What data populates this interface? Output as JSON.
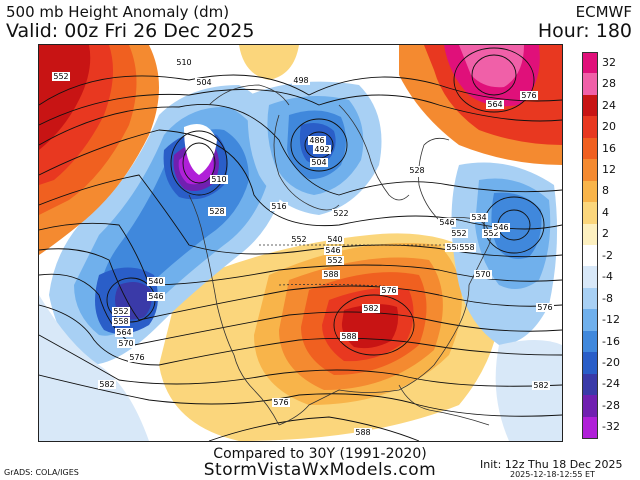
{
  "header": {
    "title": "500 mb Height Anomaly (dm)",
    "valid": "Valid: 00z Fri 26 Dec 2025",
    "model": "ECMWF",
    "hour": "Hour: 180"
  },
  "colorbar": {
    "levels": [
      {
        "label": "32",
        "color": "#e0107a"
      },
      {
        "label": "28",
        "color": "#f060a8"
      },
      {
        "label": "24",
        "color": "#c81414"
      },
      {
        "label": "20",
        "color": "#e83820"
      },
      {
        "label": "16",
        "color": "#f06020"
      },
      {
        "label": "12",
        "color": "#f48a30"
      },
      {
        "label": "8",
        "color": "#f8b44a"
      },
      {
        "label": "4",
        "color": "#fbd67c"
      },
      {
        "label": "2",
        "color": "#fdf0c0"
      },
      {
        "label": "-2",
        "color": "#ffffff"
      },
      {
        "label": "-4",
        "color": "#d8e8f8"
      },
      {
        "label": "-8",
        "color": "#a8d0f4"
      },
      {
        "label": "-12",
        "color": "#70b0ec"
      },
      {
        "label": "-16",
        "color": "#4088dc"
      },
      {
        "label": "-20",
        "color": "#2a5ec8"
      },
      {
        "label": "-24",
        "color": "#3a3aa8"
      },
      {
        "label": "-28",
        "color": "#7020b0"
      },
      {
        "label": "-32",
        "color": "#b020d8"
      }
    ],
    "end_label": "-32"
  },
  "map": {
    "contour_labels": [
      "552",
      "504",
      "510",
      "498",
      "486",
      "492",
      "504",
      "528",
      "510",
      "516",
      "522",
      "528",
      "540",
      "546",
      "552",
      "558",
      "564",
      "570",
      "576",
      "582",
      "588",
      "540",
      "546",
      "552",
      "558",
      "564",
      "570",
      "576",
      "582",
      "588",
      "552",
      "576",
      "498",
      "528",
      "534",
      "540",
      "546",
      "552",
      "558",
      "564",
      "570",
      "576",
      "582",
      "588",
      "546",
      "564",
      "576",
      "582",
      "552",
      "564",
      "576"
    ],
    "contour_label_display": [
      {
        "t": "552"
      },
      {
        "t": "504"
      },
      {
        "t": "510"
      },
      {
        "t": "498"
      },
      {
        "t": "486"
      },
      {
        "t": "492"
      },
      {
        "t": "504"
      },
      {
        "t": "498"
      },
      {
        "t": "510"
      },
      {
        "t": "516"
      },
      {
        "t": "522"
      },
      {
        "t": "528"
      },
      {
        "t": "528"
      },
      {
        "t": "540"
      },
      {
        "t": "546"
      },
      {
        "t": "552"
      },
      {
        "t": "546"
      },
      {
        "t": "552"
      },
      {
        "t": "558"
      },
      {
        "t": "540"
      },
      {
        "t": "546"
      },
      {
        "t": "552"
      },
      {
        "t": "558"
      },
      {
        "t": "564"
      },
      {
        "t": "570"
      },
      {
        "t": "576"
      },
      {
        "t": "582"
      },
      {
        "t": "588"
      },
      {
        "t": "576"
      },
      {
        "t": "582"
      },
      {
        "t": "588"
      },
      {
        "t": "588"
      },
      {
        "t": "570"
      },
      {
        "t": "576"
      },
      {
        "t": "582"
      },
      {
        "t": "564"
      },
      {
        "t": "576"
      },
      {
        "t": "528"
      },
      {
        "t": "534"
      },
      {
        "t": "546"
      },
      {
        "t": "552"
      },
      {
        "t": "558"
      },
      {
        "t": "552"
      },
      {
        "t": "576"
      }
    ],
    "colors": {
      "ridge_core": "#c81414",
      "ridge": "#f06020",
      "weak_pos": "#fbd67c",
      "trough": "#4088dc",
      "deep_trough": "#7020b0",
      "high_lat_pos": "#e0107a"
    }
  },
  "footer": {
    "compared": "Compared to 30Y (1991-2020)",
    "site": "StormVistaWxModels.com",
    "grads": "GrADS: COLA/IGES",
    "init": "Init: 12z Thu 18 Dec 2025",
    "stamp": "2025-12-18-12:55 ET"
  }
}
